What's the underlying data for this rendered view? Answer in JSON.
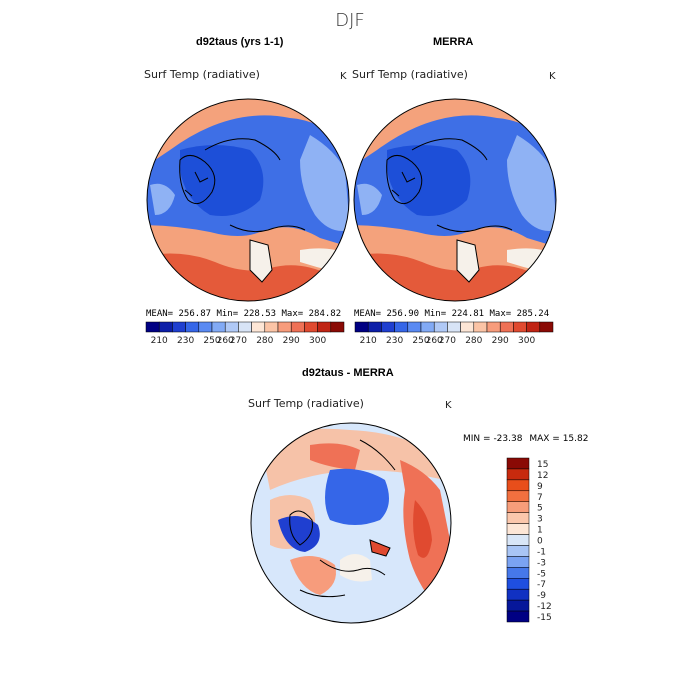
{
  "header": {
    "season": "DJF"
  },
  "panel_left": {
    "title": "d92taus (yrs 1-1)",
    "variable": "Surf Temp (radiative)",
    "units": "K",
    "stats": {
      "mean_label": "MEAN=",
      "mean": "256.87",
      "min_label": "Min=",
      "min": "228.53",
      "max_label": "Max=",
      "max": "284.82"
    }
  },
  "panel_right": {
    "title": "MERRA",
    "variable": "Surf Temp (radiative)",
    "units": "K",
    "stats": {
      "mean_label": "MEAN=",
      "mean": "256.90",
      "min_label": "Min=",
      "min": "224.81",
      "max_label": "Max=",
      "max": "285.24"
    }
  },
  "panel_diff": {
    "title": "d92taus - MERRA",
    "variable": "Surf Temp (radiative)",
    "units": "K",
    "stats": {
      "min_label": "MIN =",
      "min": "-23.38",
      "max_label": "MAX =",
      "max": "15.82"
    }
  },
  "colorbar_abs": {
    "colors": [
      "#000083",
      "#0d1fa8",
      "#1f3fd0",
      "#3566e8",
      "#5a8af2",
      "#82aaf5",
      "#b0c9f6",
      "#d8e4f6",
      "#fde6d6",
      "#fbc4a6",
      "#f79c7c",
      "#ef7156",
      "#e04a30",
      "#c02414",
      "#8a0a05"
    ],
    "tick_labels": [
      "210",
      "230",
      "250",
      "260",
      "270",
      "280",
      "290",
      "300"
    ]
  },
  "colorbar_diff": {
    "colors": [
      "#000083",
      "#06179a",
      "#1131c2",
      "#1f4fe0",
      "#4678ea",
      "#7ba3f2",
      "#a9c5f5",
      "#d9e6f7",
      "#fde6d6",
      "#fbc7ac",
      "#f79d7a",
      "#f2703f",
      "#e84e1b",
      "#c82a0e",
      "#8a0a05"
    ],
    "tick_labels": [
      "15",
      "12",
      "9",
      "7",
      "5",
      "3",
      "1",
      "0",
      "-1",
      "-3",
      "-5",
      "-7",
      "-9",
      "-12",
      "-15"
    ]
  },
  "legend_colors": {
    "cold_deep": "#1d4fd8",
    "cold": "#3e6fe6",
    "cool": "#8fb2f4",
    "neutral": "#f6f1ea",
    "warm": "#f4a27c",
    "hot": "#e45a3a",
    "diff_base": "#d7e7fb"
  }
}
